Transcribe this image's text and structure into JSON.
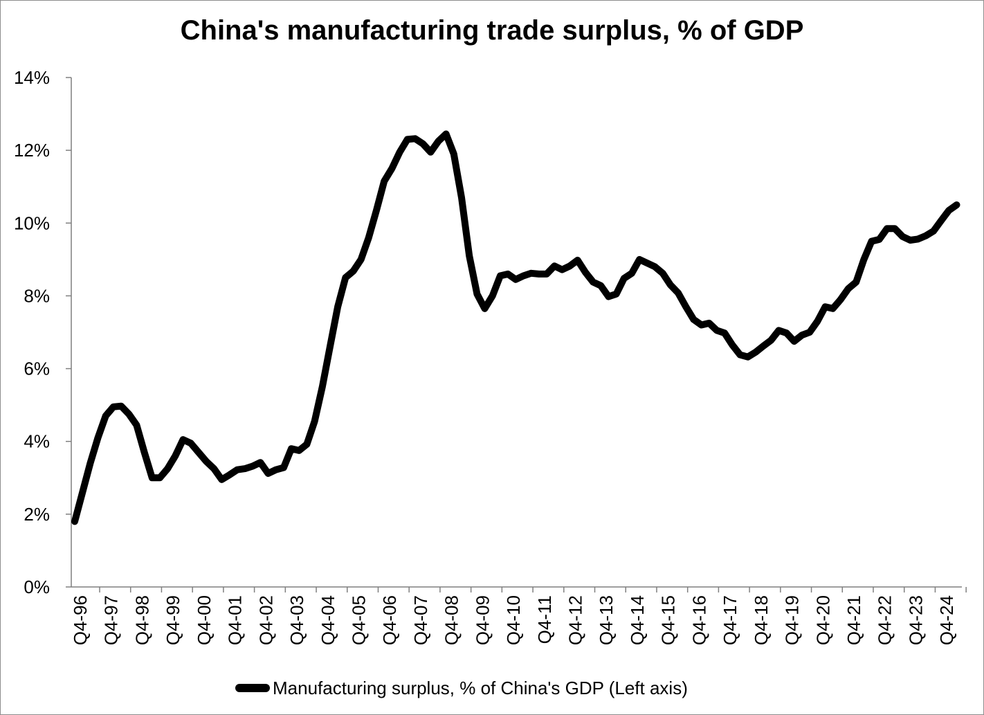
{
  "chart_data": {
    "type": "line",
    "title": "China's manufacturing trade surplus, % of GDP",
    "ylim": [
      0,
      14
    ],
    "y_ticks": [
      0,
      2,
      4,
      6,
      8,
      10,
      12,
      14
    ],
    "y_tick_labels": [
      "0%",
      "2%",
      "4%",
      "6%",
      "8%",
      "10%",
      "12%",
      "14%"
    ],
    "x_tick_labels": [
      "Q4-96",
      "Q4-97",
      "Q4-98",
      "Q4-99",
      "Q4-00",
      "Q4-01",
      "Q4-02",
      "Q4-03",
      "Q4-04",
      "Q4-05",
      "Q4-06",
      "Q4-07",
      "Q4-08",
      "Q4-09",
      "Q4-10",
      "Q4-11",
      "Q4-12",
      "Q4-13",
      "Q4-14",
      "Q4-15",
      "Q4-16",
      "Q4-17",
      "Q4-18",
      "Q4-19",
      "Q4-20",
      "Q4-21",
      "Q4-22",
      "Q4-23",
      "Q4-24"
    ],
    "x_tick_index": [
      0,
      4,
      8,
      12,
      16,
      20,
      24,
      28,
      32,
      36,
      40,
      44,
      48,
      52,
      56,
      60,
      64,
      68,
      72,
      76,
      80,
      84,
      88,
      92,
      96,
      100,
      104,
      108,
      112
    ],
    "grid": false,
    "legend_position": "bottom",
    "line_color": "#000000",
    "series": [
      {
        "name": "Manufacturing surplus, % of China's GDP (Left axis)",
        "values": [
          1.8,
          2.6,
          3.4,
          4.1,
          4.7,
          4.95,
          4.97,
          4.75,
          4.45,
          3.7,
          3.0,
          3.0,
          3.25,
          3.6,
          4.05,
          3.95,
          3.7,
          3.45,
          3.25,
          2.95,
          3.08,
          3.22,
          3.25,
          3.32,
          3.42,
          3.12,
          3.22,
          3.28,
          3.8,
          3.75,
          3.92,
          4.55,
          5.5,
          6.6,
          7.7,
          8.5,
          8.68,
          9.0,
          9.6,
          10.35,
          11.15,
          11.5,
          11.95,
          12.3,
          12.32,
          12.18,
          11.95,
          12.25,
          12.45,
          11.9,
          10.7,
          9.1,
          8.05,
          7.65,
          8.0,
          8.55,
          8.6,
          8.45,
          8.55,
          8.62,
          8.6,
          8.6,
          8.82,
          8.72,
          8.82,
          8.98,
          8.65,
          8.38,
          8.28,
          7.98,
          8.05,
          8.48,
          8.62,
          9.0,
          8.9,
          8.8,
          8.62,
          8.3,
          8.08,
          7.7,
          7.35,
          7.2,
          7.25,
          7.05,
          6.98,
          6.65,
          6.38,
          6.32,
          6.45,
          6.62,
          6.78,
          7.05,
          6.98,
          6.75,
          6.92,
          7.0,
          7.3,
          7.7,
          7.65,
          7.9,
          8.2,
          8.38,
          9.0,
          9.5,
          9.55,
          9.85,
          9.85,
          9.63,
          9.53,
          9.56,
          9.65,
          9.78,
          10.07,
          10.35,
          10.5
        ]
      }
    ]
  }
}
